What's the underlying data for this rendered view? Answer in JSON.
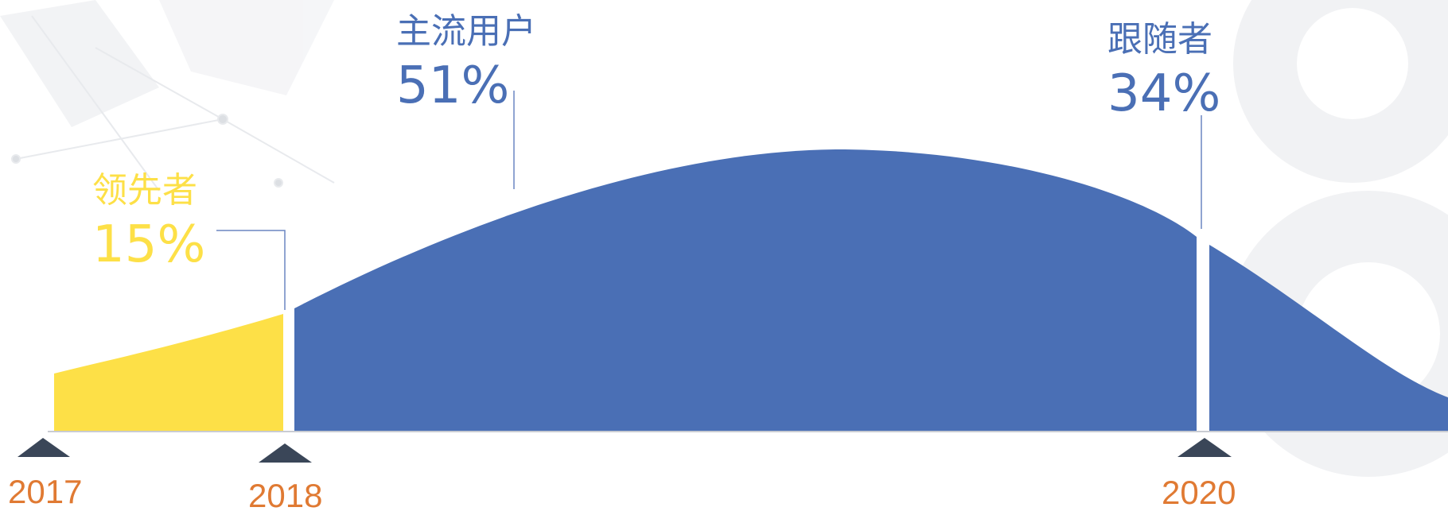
{
  "segments": [
    {
      "name": "领先者",
      "percent": "15%",
      "color": "#fde047"
    },
    {
      "name": "主流用户",
      "percent": "51%",
      "color": "#4a6fb5"
    },
    {
      "name": "跟随者",
      "percent": "34%",
      "color": "#4a6fb5"
    }
  ],
  "timeline": [
    {
      "year": "2017"
    },
    {
      "year": "2018"
    },
    {
      "year": "2020"
    }
  ],
  "colors": {
    "leader": "#fde047",
    "mainstream": "#4a6fb5",
    "label_blue": "#4a6fb5",
    "year_orange": "#e07a33",
    "marker": "#3a4658"
  }
}
